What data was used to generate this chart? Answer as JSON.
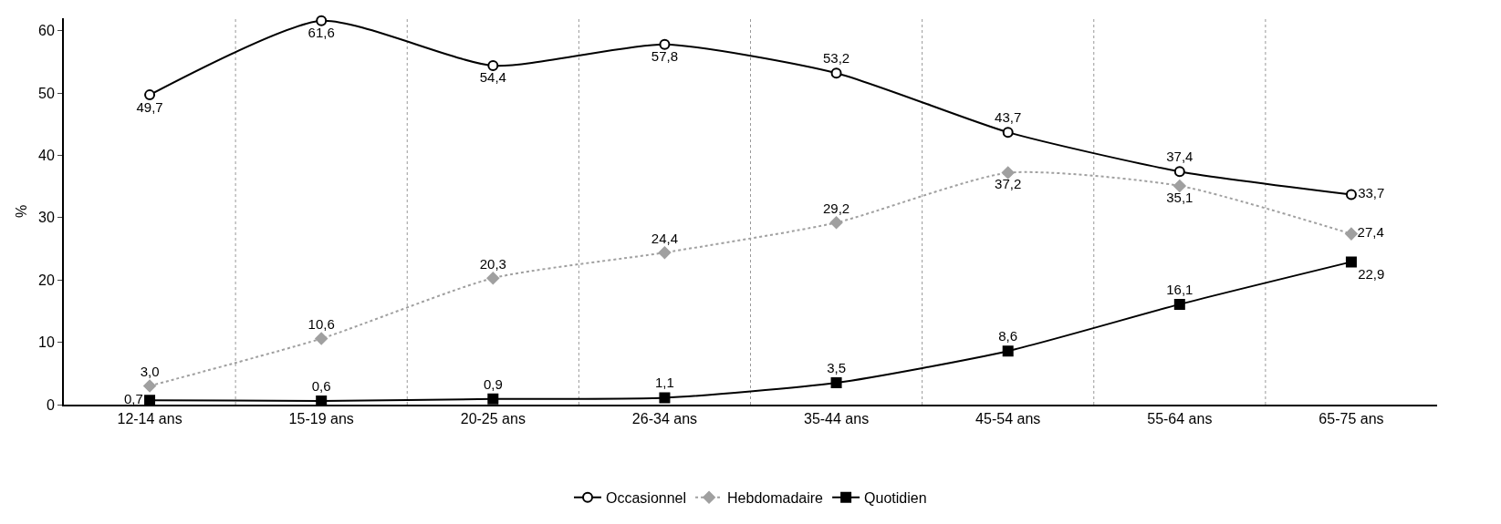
{
  "chart_data": {
    "type": "line",
    "ylabel": "%",
    "categories": [
      "12-14 ans",
      "15-19 ans",
      "20-25 ans",
      "26-34 ans",
      "35-44 ans",
      "45-54 ans",
      "55-64 ans",
      "65-75 ans"
    ],
    "series": [
      {
        "name": "Occasionnel",
        "color": "#000000",
        "marker": "circle",
        "line_style": "solid",
        "values": [
          49.7,
          61.6,
          54.4,
          57.8,
          53.2,
          43.7,
          37.4,
          33.7
        ],
        "value_labels": [
          "49,7",
          "61,6",
          "54,4",
          "57,8",
          "53,2",
          "43,7",
          "37,4",
          "33,7"
        ]
      },
      {
        "name": "Hebdomadaire",
        "color": "#a0a0a0",
        "marker": "diamond",
        "line_style": "dotted",
        "values": [
          3.0,
          10.6,
          20.3,
          24.4,
          29.2,
          37.2,
          35.1,
          27.4
        ],
        "value_labels": [
          "3,0",
          "10,6",
          "20,3",
          "24,4",
          "29,2",
          "37,2",
          "35,1",
          "27,4"
        ]
      },
      {
        "name": "Quotidien",
        "color": "#000000",
        "marker": "square",
        "line_style": "solid",
        "values": [
          0.7,
          0.6,
          0.9,
          1.1,
          3.5,
          8.6,
          16.1,
          22.9
        ],
        "value_labels": [
          "0,7",
          "0,6",
          "0,9",
          "1,1",
          "3,5",
          "8,6",
          "16,1",
          "22,9"
        ]
      }
    ],
    "ylim": [
      0,
      62
    ],
    "yticks": [
      0,
      10,
      20,
      30,
      40,
      50,
      60
    ],
    "grid": "x",
    "legend": "bottom"
  }
}
